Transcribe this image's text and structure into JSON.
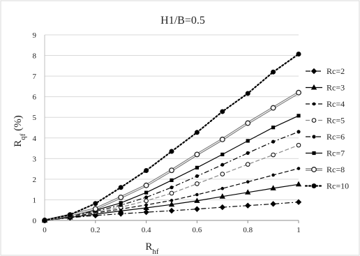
{
  "chart_data": {
    "type": "line",
    "title": "H1/B=0.5",
    "ylabel_main": "R",
    "ylabel_sub": "qf",
    "ylabel_tail": " (%)",
    "xlabel_main": "R",
    "xlabel_sub": "hf",
    "xlim": [
      0,
      1
    ],
    "ylim": [
      0,
      9
    ],
    "xticks": [
      0,
      0.2,
      0.4,
      0.6,
      0.8,
      1
    ],
    "xtick_labels": [
      "0",
      "0.2",
      "0.4",
      "0.6",
      "0.8",
      "1"
    ],
    "yticks": [
      0,
      1,
      2,
      3,
      4,
      5,
      6,
      7,
      8,
      9
    ],
    "ytick_labels": [
      "0",
      "1",
      "2",
      "3",
      "4",
      "5",
      "6",
      "7",
      "8",
      "9"
    ],
    "grid": "horizontal",
    "legend_position": "right",
    "x": [
      0,
      0.1,
      0.2,
      0.3,
      0.4,
      0.5,
      0.6,
      0.7,
      0.8,
      0.9,
      1.0
    ],
    "series": [
      {
        "name": "Rc=2",
        "values": [
          0,
          0.13,
          0.24,
          0.32,
          0.4,
          0.47,
          0.55,
          0.64,
          0.72,
          0.8,
          0.89
        ],
        "marker": "diamond",
        "dash": "dashdot",
        "color": "#000000"
      },
      {
        "name": "Rc=3",
        "values": [
          0,
          0.15,
          0.3,
          0.46,
          0.61,
          0.77,
          0.95,
          1.16,
          1.36,
          1.56,
          1.75
        ],
        "marker": "triangle",
        "dash": "solid",
        "color": "#000000"
      },
      {
        "name": "Rc=4",
        "values": [
          0,
          0.18,
          0.36,
          0.55,
          0.75,
          0.97,
          1.25,
          1.55,
          1.87,
          2.2,
          2.52
        ],
        "marker": "smallcircle",
        "dash": "dash",
        "color": "#000000"
      },
      {
        "name": "Rc=5",
        "values": [
          0,
          0.2,
          0.4,
          0.64,
          0.95,
          1.32,
          1.78,
          2.25,
          2.72,
          3.18,
          3.65
        ],
        "marker": "opencircle",
        "dash": "dash",
        "color": "#888888"
      },
      {
        "name": "Rc=6",
        "values": [
          0,
          0.22,
          0.44,
          0.74,
          1.12,
          1.6,
          2.15,
          2.7,
          3.27,
          3.82,
          4.3
        ],
        "marker": "dot",
        "dash": "dashdot",
        "color": "#000000"
      },
      {
        "name": "Rc=7",
        "values": [
          0,
          0.24,
          0.49,
          0.85,
          1.35,
          1.95,
          2.56,
          3.2,
          3.86,
          4.51,
          5.08
        ],
        "marker": "square",
        "dash": "solid",
        "color": "#000000"
      },
      {
        "name": "Rc=8",
        "values": [
          0,
          0.26,
          0.56,
          1.12,
          1.7,
          2.43,
          3.2,
          3.93,
          4.72,
          5.46,
          6.2
        ],
        "marker": "ringed",
        "dash": "double",
        "color": "#777777"
      },
      {
        "name": "Rc=10",
        "values": [
          0,
          0.28,
          0.82,
          1.6,
          2.42,
          3.35,
          4.27,
          5.28,
          6.16,
          7.2,
          8.07
        ],
        "marker": "bigcircle",
        "dash": "dotted",
        "color": "#000000"
      }
    ]
  }
}
